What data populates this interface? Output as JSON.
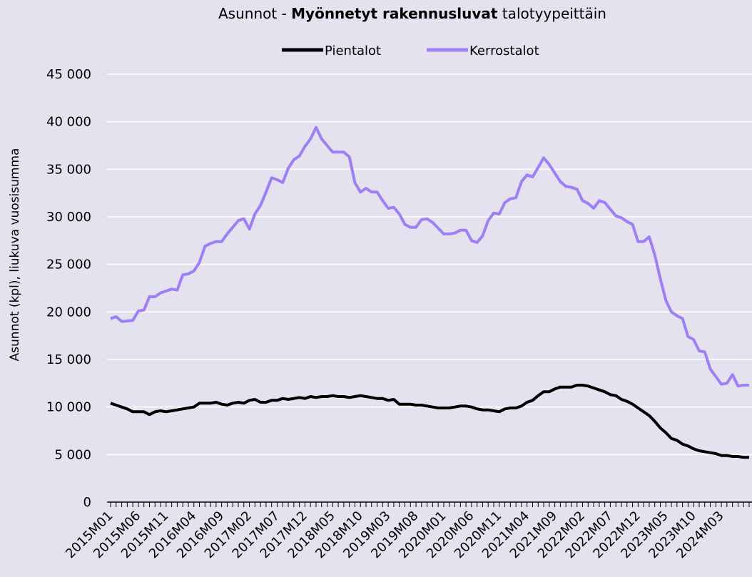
{
  "chart_data": {
    "type": "line",
    "title_parts": [
      "Asunnot - ",
      "Myönnetyt rakennusluvat",
      " talotyypeittäin"
    ],
    "title_bold": [
      false,
      true,
      false
    ],
    "ylabel": "Asunnot (kpl), liukuva vuosisumma",
    "legend": "top",
    "grid": true,
    "ylim": [
      0,
      45000
    ],
    "yticks": [
      0,
      {
        "value": 5000,
        "label": "5 000"
      },
      {
        "value": 10000,
        "label": "10 000"
      },
      {
        "value": 15000,
        "label": "15 000"
      },
      {
        "value": 20000,
        "label": "20 000"
      },
      {
        "value": 25000,
        "label": "25 000"
      },
      {
        "value": 30000,
        "label": "30 000"
      },
      {
        "value": 35000,
        "label": "35 000"
      },
      {
        "value": 40000,
        "label": "40 000"
      },
      {
        "value": 45000,
        "label": "45 000"
      }
    ],
    "categories": [
      "2015M01",
      null,
      null,
      null,
      null,
      "2015M06",
      null,
      null,
      null,
      null,
      "2015M11",
      null,
      null,
      null,
      null,
      "2016M04",
      null,
      null,
      null,
      null,
      "2016M09",
      null,
      null,
      null,
      null,
      "2017M02",
      null,
      null,
      null,
      null,
      "2017M07",
      null,
      null,
      null,
      null,
      "2017M12",
      null,
      null,
      null,
      null,
      "2018M05",
      null,
      null,
      null,
      null,
      "2018M10",
      null,
      null,
      null,
      null,
      "2019M03",
      null,
      null,
      null,
      null,
      "2019M08",
      null,
      null,
      null,
      null,
      "2020M01",
      null,
      null,
      null,
      null,
      "2020M06",
      null,
      null,
      null,
      null,
      "2020M11",
      null,
      null,
      null,
      null,
      "2021M04",
      null,
      null,
      null,
      null,
      "2021M09",
      null,
      null,
      null,
      null,
      "2022M02",
      null,
      null,
      null,
      null,
      "2022M07",
      null,
      null,
      null,
      null,
      "2022M12",
      null,
      null,
      null,
      null,
      "2023M05",
      null,
      null,
      null,
      null,
      "2023M10",
      null,
      null,
      null,
      null,
      "2024M03",
      null,
      null,
      null,
      null,
      null
    ],
    "series": [
      {
        "name": "Pientalot",
        "color": "#000000",
        "values": [
          10400,
          10200,
          10000,
          9800,
          9500,
          9500,
          9500,
          9200,
          9500,
          9600,
          9500,
          9600,
          9700,
          9800,
          9900,
          10000,
          10400,
          10400,
          10400,
          10500,
          10300,
          10200,
          10400,
          10500,
          10400,
          10700,
          10800,
          10500,
          10500,
          10700,
          10700,
          10900,
          10800,
          10900,
          11000,
          10900,
          11100,
          11000,
          11100,
          11100,
          11200,
          11100,
          11100,
          11000,
          11100,
          11200,
          11100,
          11000,
          10900,
          10900,
          10700,
          10800,
          10300,
          10300,
          10300,
          10200,
          10200,
          10100,
          10000,
          9900,
          9900,
          9900,
          10000,
          10100,
          10100,
          10000,
          9800,
          9700,
          9700,
          9600,
          9500,
          9800,
          9900,
          9900,
          10100,
          10500,
          10700,
          11200,
          11600,
          11600,
          11900,
          12100,
          12100,
          12100,
          12300,
          12300,
          12200,
          12000,
          11800,
          11600,
          11300,
          11200,
          10800,
          10600,
          10300,
          9900,
          9500,
          9100,
          8500,
          7800,
          7300,
          6700,
          6500,
          6100,
          5900,
          5600,
          5400,
          5300,
          5200,
          5100,
          4900,
          4900,
          4800,
          4800,
          4700,
          4700
        ]
      },
      {
        "name": "Kerrostalot",
        "color": "#9f7ff5",
        "values": [
          19300,
          19500,
          19000,
          19050,
          19100,
          20100,
          20200,
          21600,
          21600,
          22000,
          22200,
          22400,
          22300,
          23900,
          24000,
          24300,
          25200,
          26900,
          27200,
          27400,
          27400,
          28200,
          28900,
          29600,
          29800,
          28700,
          30300,
          31200,
          32600,
          34100,
          33900,
          33600,
          35100,
          36000,
          36400,
          37400,
          38200,
          39400,
          38200,
          37500,
          36800,
          36800,
          36800,
          36300,
          33600,
          32600,
          33000,
          32600,
          32600,
          31700,
          30900,
          31000,
          30300,
          29200,
          28900,
          28900,
          29700,
          29800,
          29400,
          28800,
          28200,
          28200,
          28300,
          28600,
          28600,
          27500,
          27300,
          28000,
          29600,
          30400,
          30300,
          31500,
          31900,
          32000,
          33700,
          34400,
          34200,
          35200,
          36200,
          35500,
          34600,
          33700,
          33200,
          33100,
          32900,
          31700,
          31400,
          30900,
          31700,
          31500,
          30800,
          30100,
          29900,
          29500,
          29200,
          27400,
          27400,
          27900,
          26000,
          23500,
          21200,
          20000,
          19600,
          19300,
          17400,
          17100,
          15900,
          15800,
          14000,
          13200,
          12400,
          12500,
          13400,
          12200,
          12300,
          12300
        ]
      }
    ]
  }
}
